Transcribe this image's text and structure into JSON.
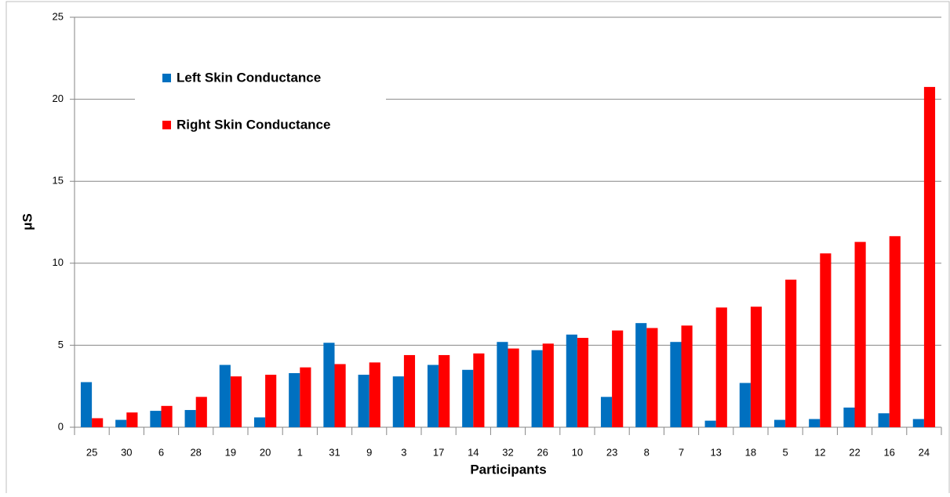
{
  "chart_data": {
    "type": "bar",
    "x_label": "Participants",
    "y_label": "μS",
    "categories": [
      "25",
      "30",
      "6",
      "28",
      "19",
      "20",
      "1",
      "31",
      "9",
      "3",
      "17",
      "14",
      "32",
      "26",
      "10",
      "23",
      "8",
      "7",
      "13",
      "18",
      "5",
      "12",
      "22",
      "16",
      "24"
    ],
    "series": [
      {
        "name": "Left Skin Conductance",
        "color": "#0070c0",
        "values": [
          2.75,
          0.45,
          1.0,
          1.05,
          3.8,
          0.6,
          3.3,
          5.15,
          3.2,
          3.1,
          3.8,
          3.5,
          5.2,
          4.7,
          5.65,
          1.85,
          6.35,
          5.2,
          0.4,
          2.7,
          0.45,
          0.5,
          1.2,
          0.85,
          0.5
        ]
      },
      {
        "name": "Right Skin Conductance",
        "color": "#ff0000",
        "values": [
          0.55,
          0.9,
          1.3,
          1.85,
          3.1,
          3.2,
          3.65,
          3.85,
          3.95,
          4.4,
          4.4,
          4.5,
          4.8,
          5.1,
          5.45,
          5.9,
          6.05,
          6.2,
          7.3,
          7.35,
          9.0,
          10.6,
          11.3,
          11.65,
          20.75
        ]
      }
    ],
    "ylim": [
      0,
      25
    ],
    "yticks": [
      0,
      5,
      10,
      15,
      20,
      25
    ],
    "grid": true,
    "legend": "top-left"
  }
}
